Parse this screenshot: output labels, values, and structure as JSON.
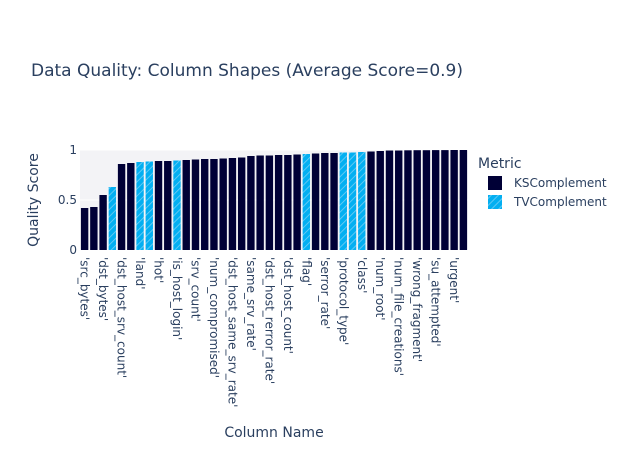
{
  "chart_data": {
    "type": "bar",
    "title": "Data Quality: Column Shapes (Average Score=0.9)",
    "xlabel": "Column Name",
    "ylabel": "Quality Score",
    "ylim": [
      0,
      1
    ],
    "yticks": [
      0,
      0.5,
      1
    ],
    "ytick_labels": [
      "0",
      "0.5",
      "1"
    ],
    "legend_title": "Metric",
    "legend_placement": "right",
    "series": [
      {
        "name": "KSComplement",
        "color": "#000036",
        "pattern": "solid"
      },
      {
        "name": "TVComplement",
        "color": "#03AFF1",
        "pattern": "hatched"
      }
    ],
    "categories": [
      {
        "name": "'src_bytes'",
        "metric": "KSComplement",
        "value": 0.42,
        "labeled": true
      },
      {
        "name": "",
        "metric": "KSComplement",
        "value": 0.43,
        "labeled": false
      },
      {
        "name": "'dst_bytes'",
        "metric": "KSComplement",
        "value": 0.55,
        "labeled": true
      },
      {
        "name": "",
        "metric": "TVComplement",
        "value": 0.63,
        "labeled": false
      },
      {
        "name": "'dst_host_srv_count'",
        "metric": "KSComplement",
        "value": 0.86,
        "labeled": true
      },
      {
        "name": "",
        "metric": "KSComplement",
        "value": 0.87,
        "labeled": false
      },
      {
        "name": "'land'",
        "metric": "TVComplement",
        "value": 0.88,
        "labeled": true
      },
      {
        "name": "",
        "metric": "TVComplement",
        "value": 0.885,
        "labeled": false
      },
      {
        "name": "'hot'",
        "metric": "KSComplement",
        "value": 0.89,
        "labeled": true
      },
      {
        "name": "",
        "metric": "KSComplement",
        "value": 0.89,
        "labeled": false
      },
      {
        "name": "'is_host_login'",
        "metric": "TVComplement",
        "value": 0.895,
        "labeled": true
      },
      {
        "name": "",
        "metric": "KSComplement",
        "value": 0.9,
        "labeled": false
      },
      {
        "name": "'srv_count'",
        "metric": "KSComplement",
        "value": 0.905,
        "labeled": true
      },
      {
        "name": "",
        "metric": "KSComplement",
        "value": 0.91,
        "labeled": false
      },
      {
        "name": "'num_compromised'",
        "metric": "KSComplement",
        "value": 0.91,
        "labeled": true
      },
      {
        "name": "",
        "metric": "KSComplement",
        "value": 0.915,
        "labeled": false
      },
      {
        "name": "'dst_host_same_srv_rate'",
        "metric": "KSComplement",
        "value": 0.92,
        "labeled": true
      },
      {
        "name": "",
        "metric": "KSComplement",
        "value": 0.925,
        "labeled": false
      },
      {
        "name": "'same_srv_rate'",
        "metric": "KSComplement",
        "value": 0.94,
        "labeled": true
      },
      {
        "name": "",
        "metric": "KSComplement",
        "value": 0.945,
        "labeled": false
      },
      {
        "name": "'dst_host_rerror_rate'",
        "metric": "KSComplement",
        "value": 0.945,
        "labeled": true
      },
      {
        "name": "",
        "metric": "KSComplement",
        "value": 0.95,
        "labeled": false
      },
      {
        "name": "'dst_host_count'",
        "metric": "KSComplement",
        "value": 0.95,
        "labeled": true
      },
      {
        "name": "",
        "metric": "KSComplement",
        "value": 0.955,
        "labeled": false
      },
      {
        "name": "'flag'",
        "metric": "TVComplement",
        "value": 0.96,
        "labeled": true
      },
      {
        "name": "",
        "metric": "KSComplement",
        "value": 0.965,
        "labeled": false
      },
      {
        "name": "'serror_rate'",
        "metric": "KSComplement",
        "value": 0.97,
        "labeled": true
      },
      {
        "name": "",
        "metric": "KSComplement",
        "value": 0.97,
        "labeled": false
      },
      {
        "name": "'protocol_type'",
        "metric": "TVComplement",
        "value": 0.975,
        "labeled": true
      },
      {
        "name": "",
        "metric": "TVComplement",
        "value": 0.975,
        "labeled": false
      },
      {
        "name": "'class'",
        "metric": "TVComplement",
        "value": 0.98,
        "labeled": true
      },
      {
        "name": "",
        "metric": "KSComplement",
        "value": 0.985,
        "labeled": false
      },
      {
        "name": "'num_root'",
        "metric": "KSComplement",
        "value": 0.99,
        "labeled": true
      },
      {
        "name": "",
        "metric": "KSComplement",
        "value": 0.995,
        "labeled": false
      },
      {
        "name": "'num_file_creations'",
        "metric": "KSComplement",
        "value": 0.995,
        "labeled": true
      },
      {
        "name": "",
        "metric": "KSComplement",
        "value": 0.997,
        "labeled": false
      },
      {
        "name": "'wrong_fragment'",
        "metric": "KSComplement",
        "value": 0.998,
        "labeled": true
      },
      {
        "name": "",
        "metric": "KSComplement",
        "value": 0.998,
        "labeled": false
      },
      {
        "name": "'su_attempted'",
        "metric": "KSComplement",
        "value": 0.999,
        "labeled": true
      },
      {
        "name": "",
        "metric": "KSComplement",
        "value": 0.999,
        "labeled": false
      },
      {
        "name": "'urgent'",
        "metric": "KSComplement",
        "value": 1.0,
        "labeled": true
      },
      {
        "name": "",
        "metric": "KSComplement",
        "value": 1.0,
        "labeled": false
      }
    ]
  }
}
